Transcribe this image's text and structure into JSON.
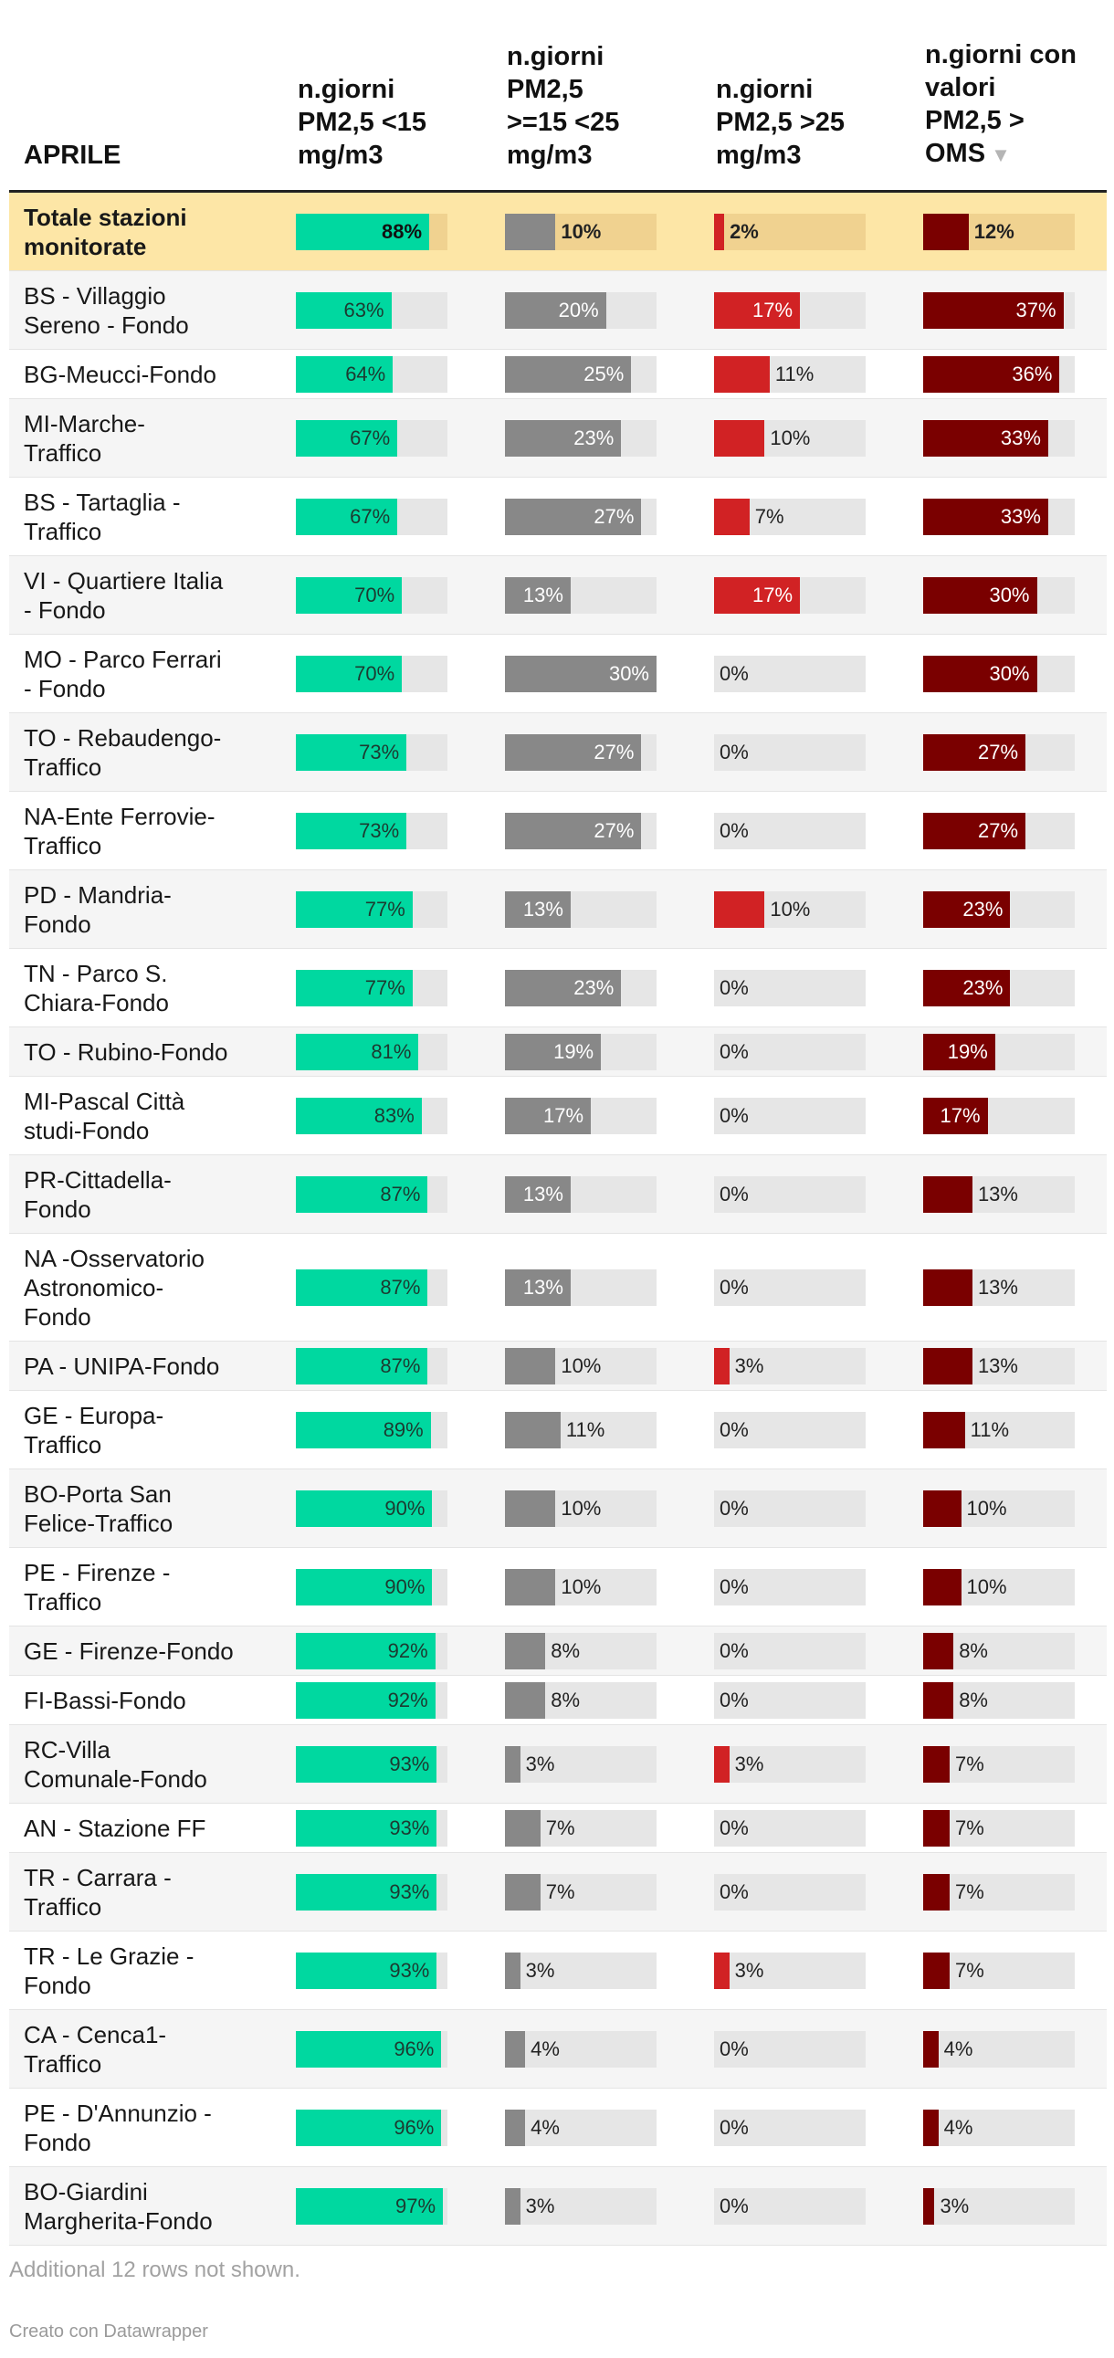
{
  "chart_data": {
    "type": "table",
    "columns": [
      {
        "key": "name",
        "label": "APRILE",
        "color": null
      },
      {
        "key": "lt15",
        "label": "n.giorni\nPM2,5  <15\nmg/m3",
        "color": "#00d8a0"
      },
      {
        "key": "mid",
        "label": "n.giorni\nPM2,5\n>=15 <25\nmg/m3",
        "color": "#888888"
      },
      {
        "key": "gt25",
        "label": "n.giorni\nPM2,5  >25\nmg/m3",
        "color": "#d12224"
      },
      {
        "key": "oms",
        "label": "n.giorni con\nvalori\nPM2,5 >\nOMS",
        "color": "#7a0000"
      }
    ],
    "sort_column": "oms",
    "sort_icon": "sort-descending-icon",
    "rows": [
      {
        "name": "Totale stazioni\nmonitorate",
        "values": [
          88,
          10,
          2,
          12
        ],
        "labels": [
          "88%",
          "10%",
          "2%",
          "12%"
        ],
        "total": true
      },
      {
        "name": "BS - Villaggio\nSereno - Fondo",
        "values": [
          63,
          20,
          17,
          37
        ],
        "labels": [
          "63%",
          "20%",
          "17%",
          "37%"
        ]
      },
      {
        "name": "BG-Meucci-Fondo",
        "values": [
          64,
          25,
          11,
          36
        ],
        "labels": [
          "64%",
          "25%",
          "11%",
          "36%"
        ]
      },
      {
        "name": "MI-Marche-\nTraffico",
        "values": [
          67,
          23,
          10,
          33
        ],
        "labels": [
          "67%",
          "23%",
          "10%",
          "33%"
        ]
      },
      {
        "name": "BS - Tartaglia -\nTraffico",
        "values": [
          67,
          27,
          7,
          33
        ],
        "labels": [
          "67%",
          "27%",
          "7%",
          "33%"
        ]
      },
      {
        "name": "VI - Quartiere Italia\n- Fondo",
        "values": [
          70,
          13,
          17,
          30
        ],
        "labels": [
          "70%",
          "13%",
          "17%",
          "30%"
        ]
      },
      {
        "name": "MO - Parco Ferrari\n- Fondo",
        "values": [
          70,
          30,
          0,
          30
        ],
        "labels": [
          "70%",
          "30%",
          "0%",
          "30%"
        ]
      },
      {
        "name": "TO - Rebaudengo-\nTraffico",
        "values": [
          73,
          27,
          0,
          27
        ],
        "labels": [
          "73%",
          "27%",
          "0%",
          "27%"
        ]
      },
      {
        "name": "NA-Ente Ferrovie-\nTraffico",
        "values": [
          73,
          27,
          0,
          27
        ],
        "labels": [
          "73%",
          "27%",
          "0%",
          "27%"
        ]
      },
      {
        "name": "PD - Mandria-\nFondo",
        "values": [
          77,
          13,
          10,
          23
        ],
        "labels": [
          "77%",
          "13%",
          "10%",
          "23%"
        ]
      },
      {
        "name": "TN - Parco S.\nChiara-Fondo",
        "values": [
          77,
          23,
          0,
          23
        ],
        "labels": [
          "77%",
          "23%",
          "0%",
          "23%"
        ]
      },
      {
        "name": "TO - Rubino-Fondo",
        "values": [
          81,
          19,
          0,
          19
        ],
        "labels": [
          "81%",
          "19%",
          "0%",
          "19%"
        ]
      },
      {
        "name": "MI-Pascal Città\nstudi-Fondo",
        "values": [
          83,
          17,
          0,
          17
        ],
        "labels": [
          "83%",
          "17%",
          "0%",
          "17%"
        ]
      },
      {
        "name": "PR-Cittadella-\nFondo",
        "values": [
          87,
          13,
          0,
          13
        ],
        "labels": [
          "87%",
          "13%",
          "0%",
          "13%"
        ]
      },
      {
        "name": "NA -Osservatorio\nAstronomico-\nFondo",
        "values": [
          87,
          13,
          0,
          13
        ],
        "labels": [
          "87%",
          "13%",
          "0%",
          "13%"
        ]
      },
      {
        "name": "PA - UNIPA-Fondo",
        "values": [
          87,
          10,
          3,
          13
        ],
        "labels": [
          "87%",
          "10%",
          "3%",
          "13%"
        ]
      },
      {
        "name": "GE - Europa-\nTraffico",
        "values": [
          89,
          11,
          0,
          11
        ],
        "labels": [
          "89%",
          "11%",
          "0%",
          "11%"
        ]
      },
      {
        "name": "BO-Porta San\nFelice-Traffico",
        "values": [
          90,
          10,
          0,
          10
        ],
        "labels": [
          "90%",
          "10%",
          "0%",
          "10%"
        ]
      },
      {
        "name": "PE - Firenze -\nTraffico",
        "values": [
          90,
          10,
          0,
          10
        ],
        "labels": [
          "90%",
          "10%",
          "0%",
          "10%"
        ]
      },
      {
        "name": "GE - Firenze-Fondo",
        "values": [
          92,
          8,
          0,
          8
        ],
        "labels": [
          "92%",
          "8%",
          "0%",
          "8%"
        ]
      },
      {
        "name": "FI-Bassi-Fondo",
        "values": [
          92,
          8,
          0,
          8
        ],
        "labels": [
          "92%",
          "8%",
          "0%",
          "8%"
        ]
      },
      {
        "name": "RC-Villa\nComunale-Fondo",
        "values": [
          93,
          3,
          3,
          7
        ],
        "labels": [
          "93%",
          "3%",
          "3%",
          "7%"
        ]
      },
      {
        "name": "AN - Stazione FF",
        "values": [
          93,
          7,
          0,
          7
        ],
        "labels": [
          "93%",
          "7%",
          "0%",
          "7%"
        ]
      },
      {
        "name": "TR - Carrara -\nTraffico",
        "values": [
          93,
          7,
          0,
          7
        ],
        "labels": [
          "93%",
          "7%",
          "0%",
          "7%"
        ]
      },
      {
        "name": "TR - Le Grazie -\nFondo",
        "values": [
          93,
          3,
          3,
          7
        ],
        "labels": [
          "93%",
          "3%",
          "3%",
          "7%"
        ]
      },
      {
        "name": "CA - Cenca1-\nTraffico",
        "values": [
          96,
          4,
          0,
          4
        ],
        "labels": [
          "96%",
          "4%",
          "0%",
          "4%"
        ]
      },
      {
        "name": "PE - D'Annunzio -\nFondo",
        "values": [
          96,
          4,
          0,
          4
        ],
        "labels": [
          "96%",
          "4%",
          "0%",
          "4%"
        ]
      },
      {
        "name": "BO-Giardini\nMargherita-Fondo",
        "values": [
          97,
          3,
          0,
          3
        ],
        "labels": [
          "97%",
          "3%",
          "0%",
          "3%"
        ]
      }
    ],
    "bar_max": [
      100,
      30,
      30,
      40
    ],
    "footnote": "Additional 12 rows not shown.",
    "credit": "Creato con Datawrapper"
  }
}
